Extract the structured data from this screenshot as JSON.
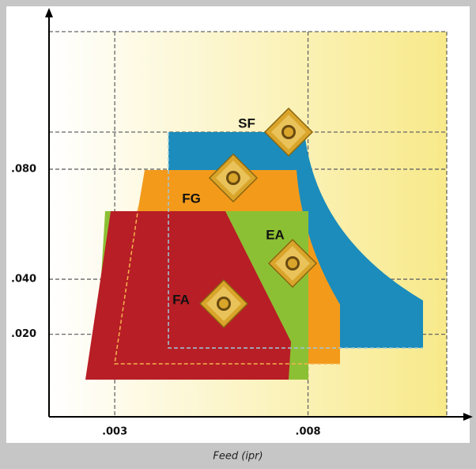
{
  "chart_data": {
    "type": "region-map",
    "regions": [
      "SF",
      "FG",
      "EA",
      "FA"
    ],
    "x_label": "Feed (ipr)",
    "xlim": [
      0.0013,
      0.0121
    ],
    "xticks": [
      {
        "value": 0.003,
        "label": ".003"
      },
      {
        "value": 0.008,
        "label": ".008"
      }
    ],
    "ylim": [
      -0.01,
      0.13
    ],
    "yticks": [
      {
        "value": 0.02,
        "label": ".020"
      },
      {
        "value": 0.04,
        "label": ".040"
      },
      {
        "value": 0.08,
        "label": ".080"
      }
    ],
    "grid": true
  }
}
